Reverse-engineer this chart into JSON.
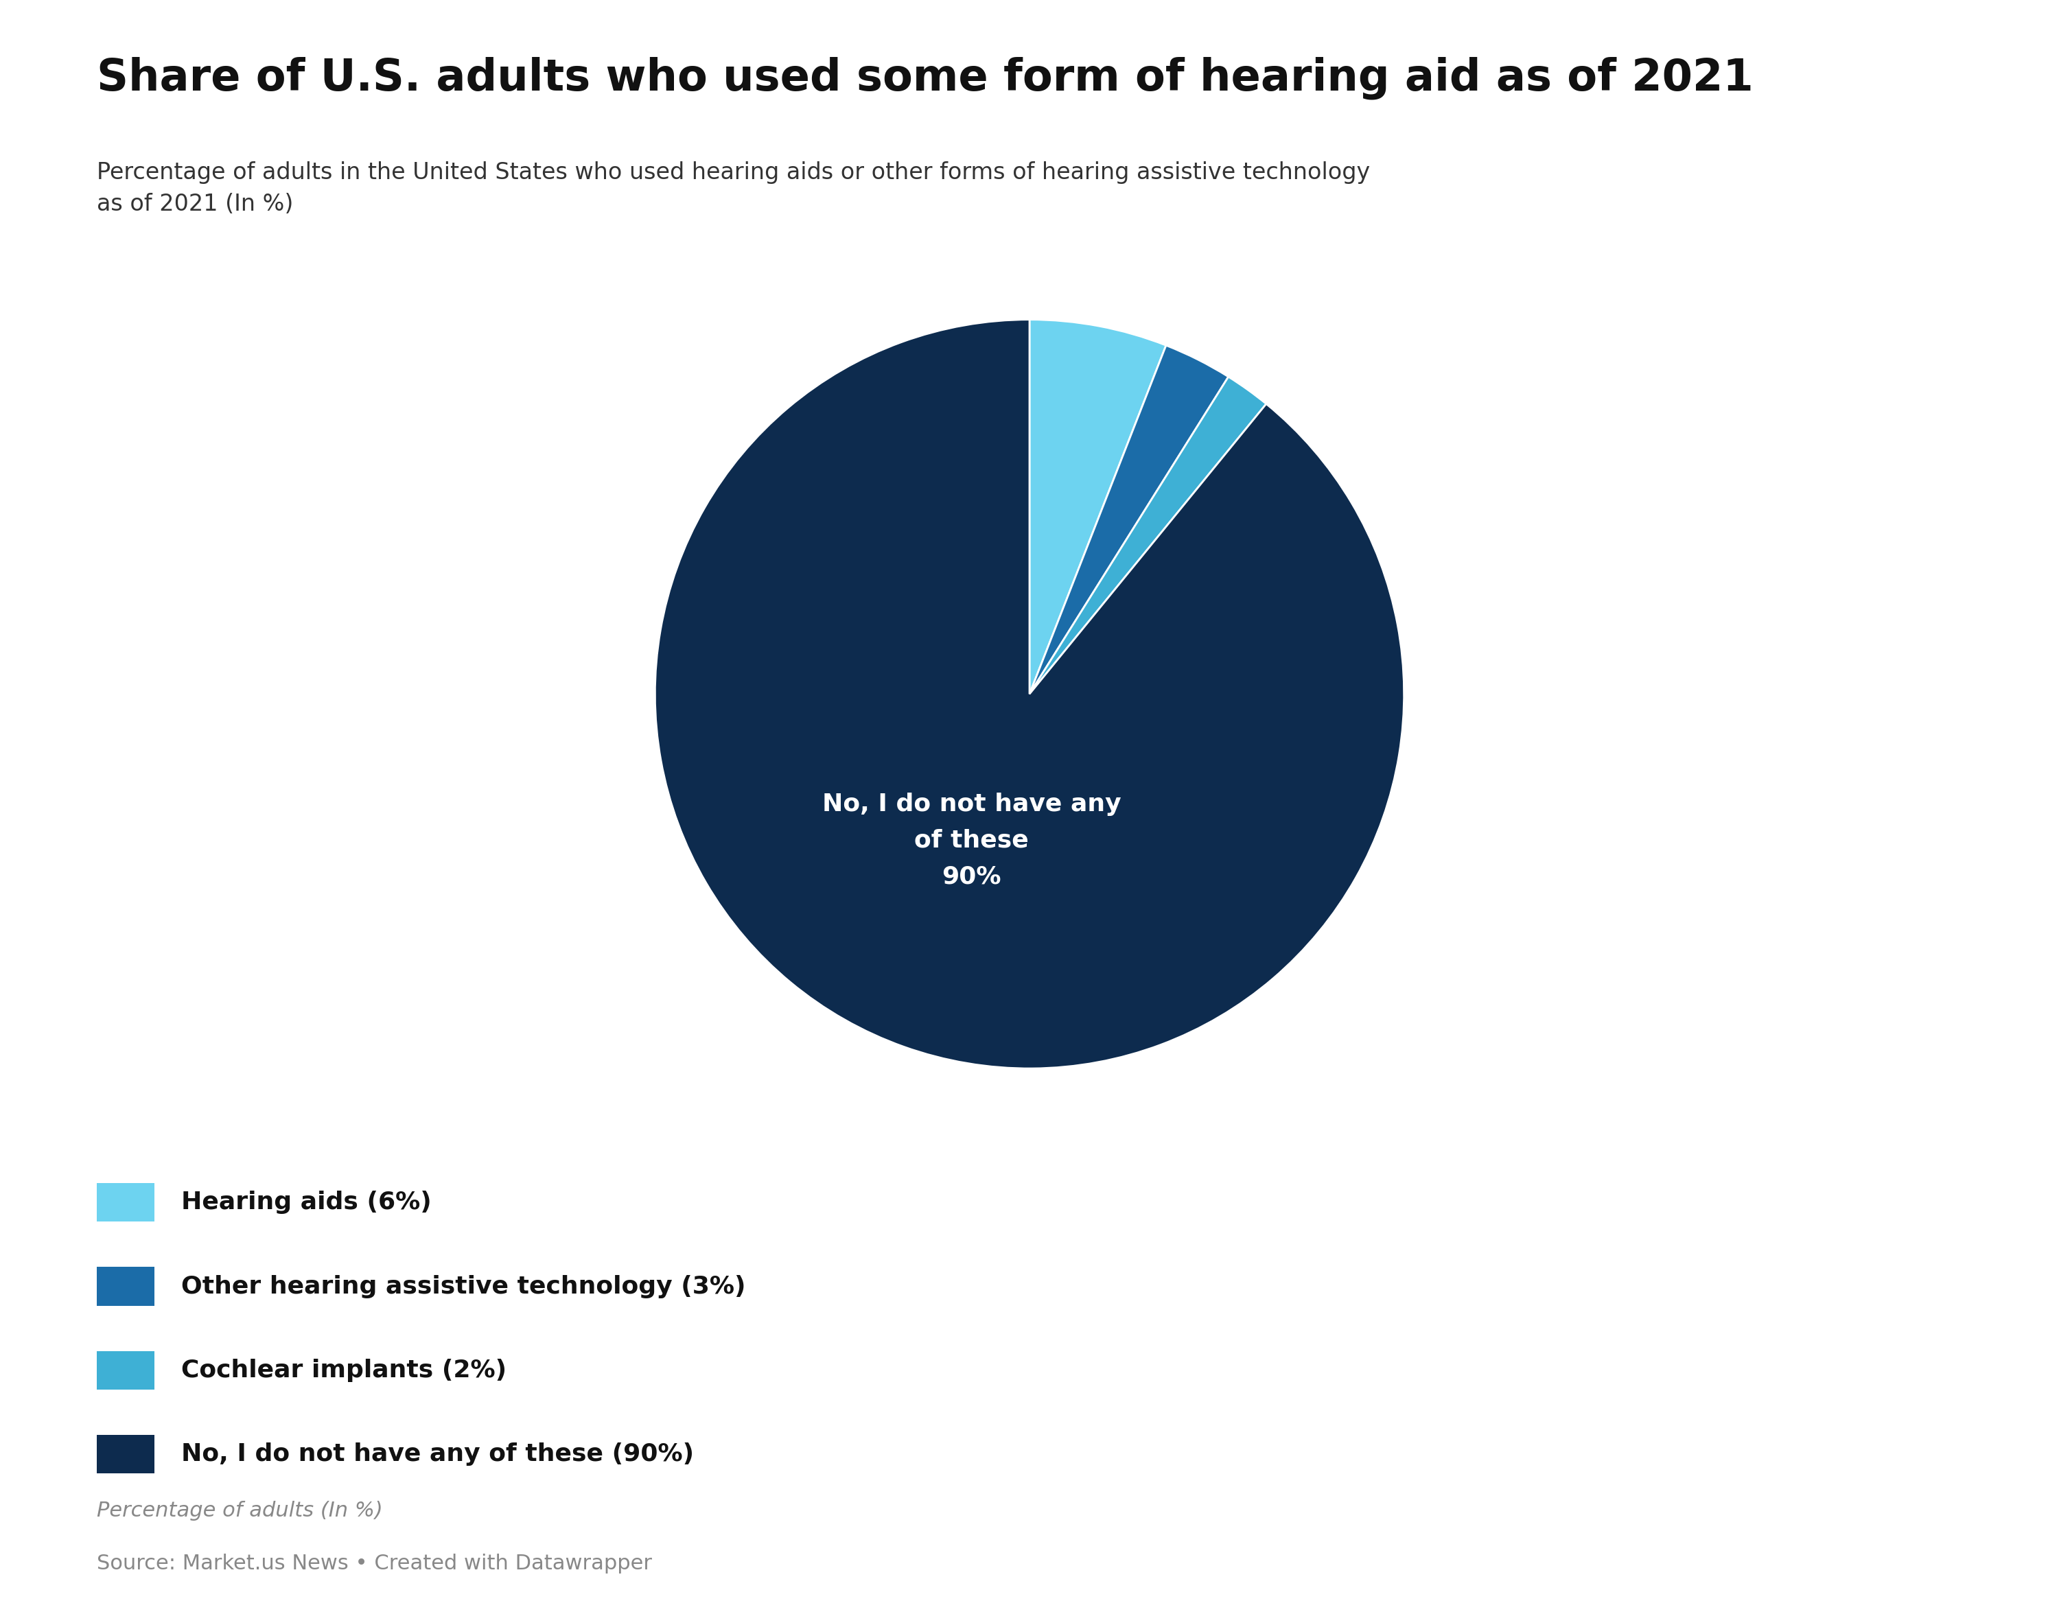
{
  "title": "Share of U.S. adults who used some form of hearing aid as of 2021",
  "subtitle": "Percentage of adults in the United States who used hearing aids or other forms of hearing assistive technology\nas of 2021 (In %)",
  "slices": [
    6,
    3,
    2,
    90
  ],
  "legend_labels": [
    "Hearing aids (6%)",
    "Other hearing assistive technology (3%)",
    "Cochlear implants (2%)",
    "No, I do not have any of these (90%)"
  ],
  "colors": [
    "#6DD3F0",
    "#1B6CA8",
    "#3EB0D5",
    "#0D2B4E"
  ],
  "pie_label": "No, I do not have any\nof these\n90%",
  "footer_italic": "Percentage of adults (In %)",
  "footer_source": "Source: Market.us News • Created with Datawrapper",
  "background_color": "#ffffff",
  "title_fontsize": 46,
  "subtitle_fontsize": 24,
  "legend_fontsize": 26,
  "pie_label_fontsize": 26,
  "footer_fontsize": 22
}
